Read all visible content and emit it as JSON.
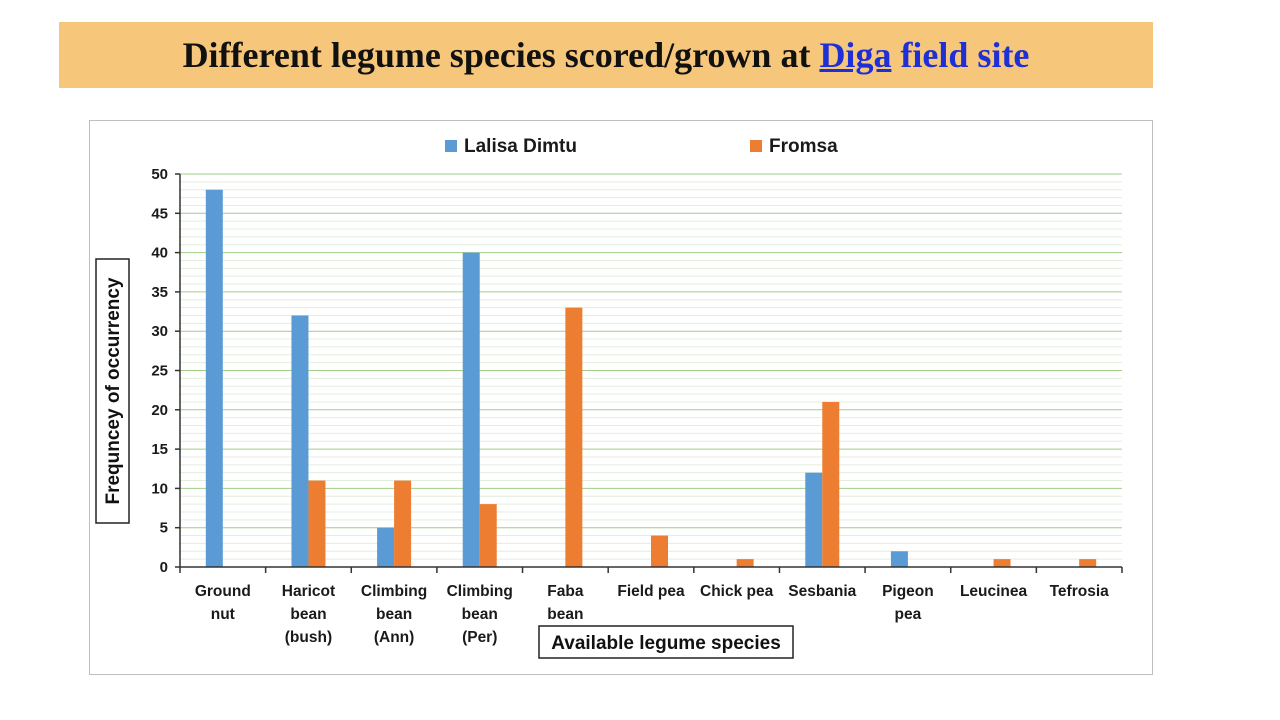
{
  "header": {
    "title_prefix": "Different legume species scored/grown at ",
    "title_link": "Diga",
    "title_suffix": " field site",
    "banner_color": "#f6c77a",
    "link_color": "#1f2fd6"
  },
  "chart_data": {
    "type": "bar",
    "title": "",
    "xlabel": "Available legume species",
    "ylabel": "Frequncey of occurrency",
    "ylim": [
      0,
      50
    ],
    "yticks": [
      0,
      5,
      10,
      15,
      20,
      25,
      30,
      35,
      40,
      45,
      50
    ],
    "grid": true,
    "legend_position": "top",
    "categories": [
      [
        "Ground",
        "nut"
      ],
      [
        "Haricot",
        "bean",
        "(bush)"
      ],
      [
        "Climbing",
        "bean",
        "(Ann)"
      ],
      [
        "Climbing",
        "bean",
        "(Per)"
      ],
      [
        "Faba",
        "bean"
      ],
      [
        "Field pea"
      ],
      [
        "Chick pea"
      ],
      [
        "Sesbania"
      ],
      [
        "Pigeon",
        "pea"
      ],
      [
        "Leucinea"
      ],
      [
        "Tefrosia"
      ]
    ],
    "series": [
      {
        "name": "Lalisa Dimtu",
        "color": "#5b9bd5",
        "values": [
          48,
          32,
          5,
          40,
          0,
          0,
          0,
          12,
          2,
          0,
          0
        ]
      },
      {
        "name": "Fromsa",
        "color": "#ed7d31",
        "values": [
          0,
          11,
          11,
          8,
          33,
          4,
          1,
          21,
          0,
          1,
          1
        ]
      }
    ]
  }
}
